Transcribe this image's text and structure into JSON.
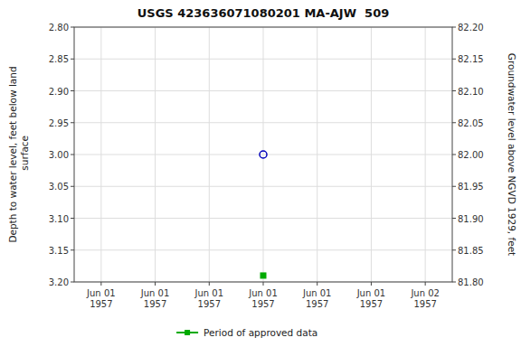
{
  "chart_data": {
    "type": "scatter",
    "title": "USGS 423636071080201 MA-AJW  509",
    "y_label": "Depth to water level, feet below land\n surface",
    "y2_label": "Groundwater level above NGVD 1929, feet",
    "categories": [
      "Jun 01\n1957",
      "Jun 01\n1957",
      "Jun 01\n1957",
      "Jun 01\n1957",
      "Jun 01\n1957",
      "Jun 01\n1957",
      "Jun 02\n1957"
    ],
    "series": [
      {
        "color": "#0000bb",
        "marker": "circle",
        "values": [
          null,
          null,
          null,
          3.0,
          null,
          null,
          null
        ]
      },
      {
        "name": "Period of approved data",
        "color": "#00aa00",
        "marker": "square",
        "values": [
          null,
          null,
          null,
          3.19,
          null,
          null,
          null
        ]
      }
    ],
    "ylim": [
      3.2,
      2.8
    ],
    "yticks": [
      {
        "value": 2.8,
        "label": "2.80"
      },
      2.85,
      {
        "value": 2.9,
        "label": "2.90"
      },
      2.95,
      {
        "value": 3.0,
        "label": "3.00"
      },
      3.05,
      {
        "value": 3.1,
        "label": "3.10"
      },
      3.15,
      {
        "value": 3.2,
        "label": "3.20"
      }
    ],
    "y2lim": [
      81.8,
      82.2
    ],
    "y2ticks": [
      {
        "value": 82.2,
        "label": "82.20"
      },
      82.15,
      {
        "value": 82.1,
        "label": "82.10"
      },
      82.05,
      {
        "value": 82.0,
        "label": "82.00"
      },
      81.95,
      {
        "value": 81.9,
        "label": "81.90"
      },
      81.85,
      {
        "value": 81.8,
        "label": "81.80"
      }
    ],
    "grid": true,
    "legend": "bottom"
  }
}
